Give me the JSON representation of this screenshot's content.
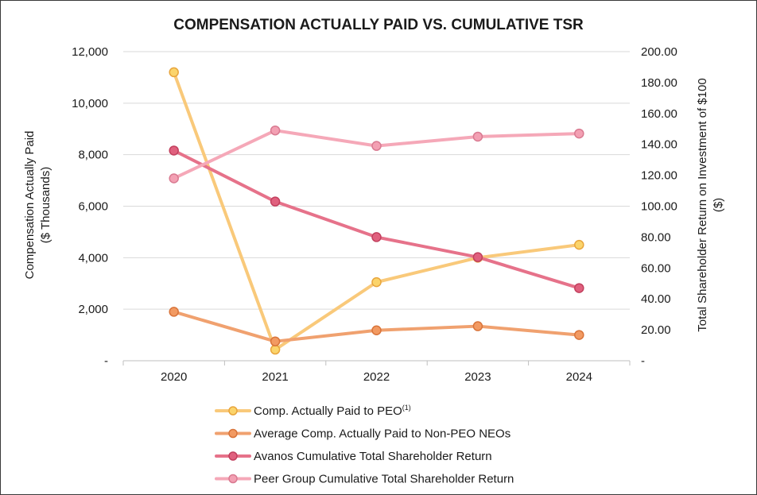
{
  "chart_data": {
    "type": "line",
    "title": "COMPENSATION ACTUALLY PAID VS. CUMULATIVE TSR",
    "categories": [
      "2020",
      "2021",
      "2022",
      "2023",
      "2024"
    ],
    "y_left": {
      "label_line1": "Compensation Actually Paid",
      "label_line2": "($ Thousands)",
      "ylim": [
        0,
        12000
      ],
      "ticks": [
        0,
        2000,
        4000,
        6000,
        8000,
        10000,
        12000
      ],
      "tick_labels": [
        "-",
        "2,000",
        "4,000",
        "6,000",
        "8,000",
        "10,000",
        "12,000"
      ]
    },
    "y_right": {
      "label_line1": "Total Shareholder Return on Investment of $100",
      "label_line2": "($)",
      "ylim": [
        0,
        200
      ],
      "ticks": [
        0,
        20,
        40,
        60,
        80,
        100,
        120,
        140,
        160,
        180,
        200
      ],
      "tick_labels": [
        "-",
        "20.00",
        "40.00",
        "60.00",
        "80.00",
        "100.00",
        "120.00",
        "140.00",
        "160.00",
        "180.00",
        "200.00"
      ]
    },
    "series": [
      {
        "name": "Comp. Actually Paid to PEO",
        "superscript": "(1)",
        "axis": "left",
        "values": [
          11200,
          430,
          3050,
          4000,
          4500
        ],
        "color": "#f9c97a",
        "marker_fill": "#fbd46b",
        "marker_stroke": "#e8a53c"
      },
      {
        "name": "Average Comp. Actually Paid to Non-PEO NEOs",
        "axis": "left",
        "values": [
          1900,
          750,
          1180,
          1340,
          1000
        ],
        "color": "#f0a16f",
        "marker_fill": "#f29a62",
        "marker_stroke": "#d9743a"
      },
      {
        "name": "Avanos Cumulative Total Shareholder Return",
        "axis": "right",
        "values": [
          136,
          103,
          80,
          67,
          47
        ],
        "color": "#e6728a",
        "marker_fill": "#e0607e",
        "marker_stroke": "#c2405e"
      },
      {
        "name": "Peer Group Cumulative Total Shareholder Return",
        "axis": "right",
        "values": [
          118,
          149,
          139,
          145,
          147
        ],
        "color": "#f5a8b8",
        "marker_fill": "#f3a0b3",
        "marker_stroke": "#d97a91"
      }
    ]
  }
}
